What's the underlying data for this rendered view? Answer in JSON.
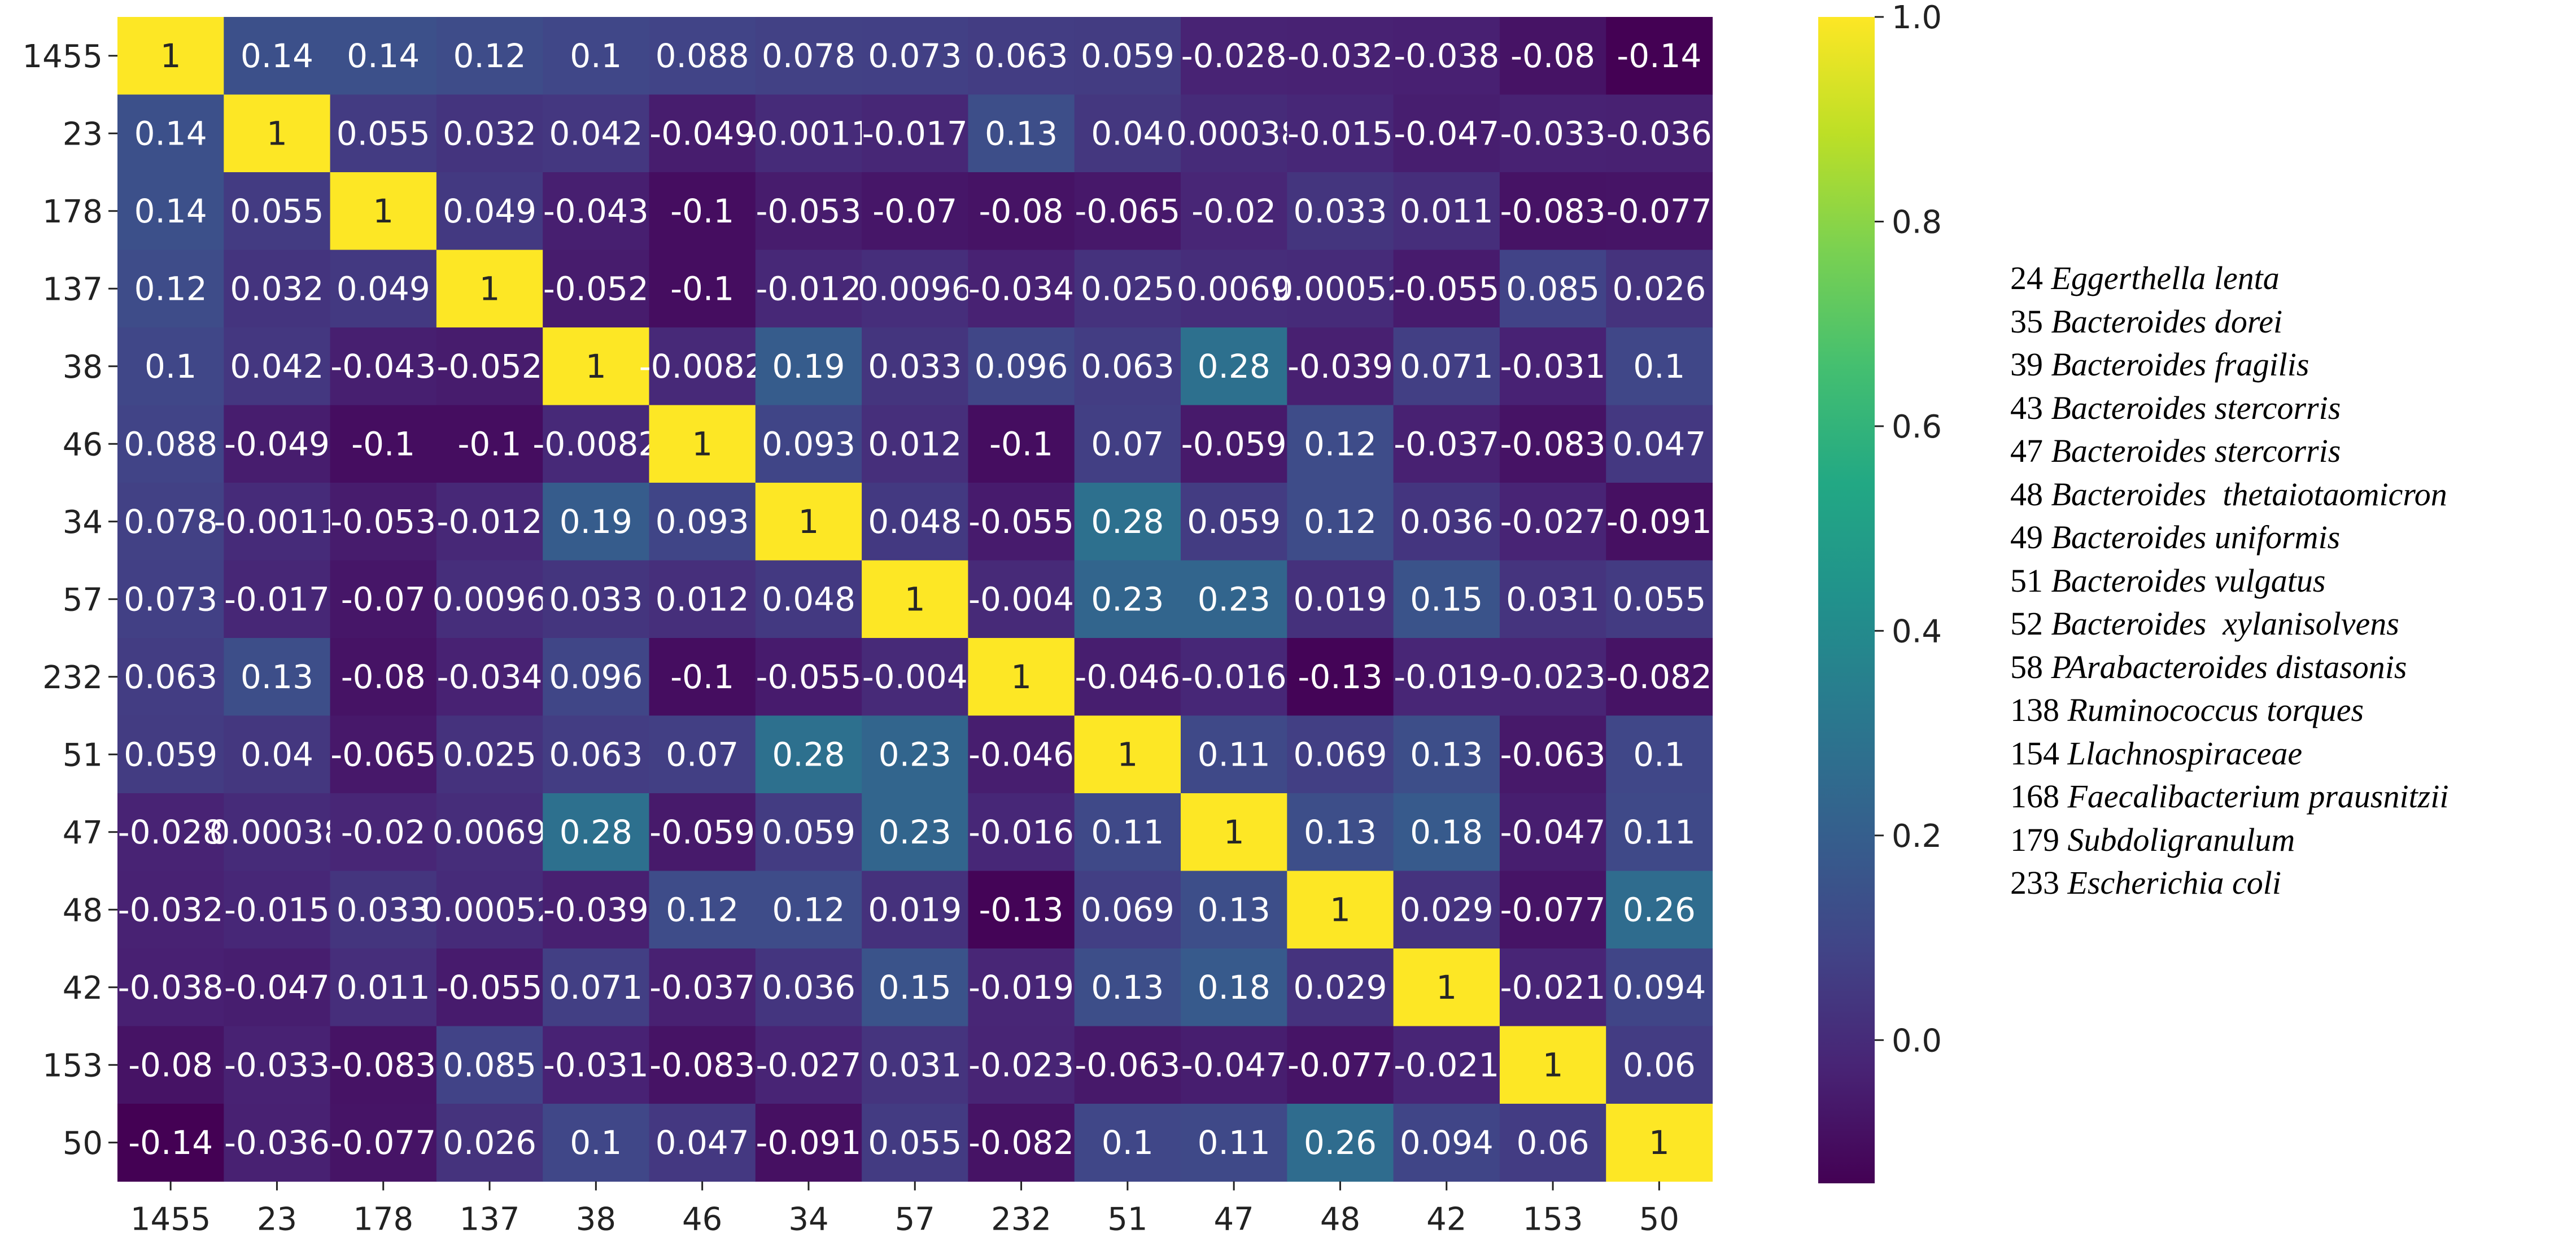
{
  "chart_data": {
    "type": "heatmap",
    "labels": [
      "1455",
      "23",
      "178",
      "137",
      "38",
      "46",
      "34",
      "57",
      "232",
      "51",
      "47",
      "48",
      "42",
      "153",
      "50"
    ],
    "cells": [
      [
        "1",
        "0.14",
        "0.14",
        "0.12",
        "0.1",
        "0.088",
        "0.078",
        "0.073",
        "0.063",
        "0.059",
        "-0.028",
        "-0.032",
        "-0.038",
        "-0.08",
        "-0.14"
      ],
      [
        "0.14",
        "1",
        "0.055",
        "0.032",
        "0.042",
        "-0.049",
        "-0.0011",
        "-0.017",
        "0.13",
        "0.04",
        "0.00038",
        "-0.015",
        "-0.047",
        "-0.033",
        "-0.036"
      ],
      [
        "0.14",
        "0.055",
        "1",
        "0.049",
        "-0.043",
        "-0.1",
        "-0.053",
        "-0.07",
        "-0.08",
        "-0.065",
        "-0.02",
        "0.033",
        "0.011",
        "-0.083",
        "-0.077"
      ],
      [
        "0.12",
        "0.032",
        "0.049",
        "1",
        "-0.052",
        "-0.1",
        "-0.012",
        "0.0096",
        "-0.034",
        "0.025",
        "0.0069",
        "0.00052",
        "-0.055",
        "0.085",
        "0.026"
      ],
      [
        "0.1",
        "0.042",
        "-0.043",
        "-0.052",
        "1",
        "-0.0082",
        "0.19",
        "0.033",
        "0.096",
        "0.063",
        "0.28",
        "-0.039",
        "0.071",
        "-0.031",
        "0.1"
      ],
      [
        "0.088",
        "-0.049",
        "-0.1",
        "-0.1",
        "-0.0082",
        "1",
        "0.093",
        "0.012",
        "-0.1",
        "0.07",
        "-0.059",
        "0.12",
        "-0.037",
        "-0.083",
        "0.047"
      ],
      [
        "0.078",
        "-0.0011",
        "-0.053",
        "-0.012",
        "0.19",
        "0.093",
        "1",
        "0.048",
        "-0.055",
        "0.28",
        "0.059",
        "0.12",
        "0.036",
        "-0.027",
        "-0.091"
      ],
      [
        "0.073",
        "-0.017",
        "-0.07",
        "0.0096",
        "0.033",
        "0.012",
        "0.048",
        "1",
        "-0.004",
        "0.23",
        "0.23",
        "0.019",
        "0.15",
        "0.031",
        "0.055"
      ],
      [
        "0.063",
        "0.13",
        "-0.08",
        "-0.034",
        "0.096",
        "-0.1",
        "-0.055",
        "-0.004",
        "1",
        "-0.046",
        "-0.016",
        "-0.13",
        "-0.019",
        "-0.023",
        "-0.082"
      ],
      [
        "0.059",
        "0.04",
        "-0.065",
        "0.025",
        "0.063",
        "0.07",
        "0.28",
        "0.23",
        "-0.046",
        "1",
        "0.11",
        "0.069",
        "0.13",
        "-0.063",
        "0.1"
      ],
      [
        "-0.028",
        "0.00038",
        "-0.02",
        "0.0069",
        "0.28",
        "-0.059",
        "0.059",
        "0.23",
        "-0.016",
        "0.11",
        "1",
        "0.13",
        "0.18",
        "-0.047",
        "0.11"
      ],
      [
        "-0.032",
        "-0.015",
        "0.033",
        "0.00052",
        "-0.039",
        "0.12",
        "0.12",
        "0.019",
        "-0.13",
        "0.069",
        "0.13",
        "1",
        "0.029",
        "-0.077",
        "0.26"
      ],
      [
        "-0.038",
        "-0.047",
        "0.011",
        "-0.055",
        "0.071",
        "-0.037",
        "0.036",
        "0.15",
        "-0.019",
        "0.13",
        "0.18",
        "0.029",
        "1",
        "-0.021",
        "0.094"
      ],
      [
        "-0.08",
        "-0.033",
        "-0.083",
        "0.085",
        "-0.031",
        "-0.083",
        "-0.027",
        "0.031",
        "-0.023",
        "-0.063",
        "-0.047",
        "-0.077",
        "-0.021",
        "1",
        "0.06"
      ],
      [
        "-0.14",
        "-0.036",
        "-0.077",
        "0.026",
        "0.1",
        "0.047",
        "-0.091",
        "0.055",
        "-0.082",
        "0.1",
        "0.11",
        "0.26",
        "0.094",
        "0.06",
        "1"
      ]
    ],
    "colormap": "viridis",
    "value_range": [
      -0.14,
      1.0
    ],
    "colorbar": {
      "ticks": [
        0.0,
        0.2,
        0.4,
        0.6,
        0.8,
        1.0
      ],
      "tick_labels": [
        "0.0",
        "0.2",
        "0.4",
        "0.6",
        "0.8",
        "1.0"
      ]
    },
    "grid": false
  },
  "legend": {
    "items": [
      {
        "id": "24",
        "name": "Eggerthella lenta"
      },
      {
        "id": "35",
        "name": "Bacteroides dorei"
      },
      {
        "id": "39",
        "name": "Bacteroides fragilis"
      },
      {
        "id": "43",
        "name": "Bacteroides stercorris"
      },
      {
        "id": "47",
        "name": "Bacteroides stercorris"
      },
      {
        "id": "48",
        "name": "Bacteroides  thetaiotaomicron"
      },
      {
        "id": "49",
        "name": "Bacteroides uniformis"
      },
      {
        "id": "51",
        "name": "Bacteroides vulgatus"
      },
      {
        "id": "52",
        "name": "Bacteroides  xylanisolvens"
      },
      {
        "id": "58",
        "name": "PArabacteroides distasonis"
      },
      {
        "id": "138",
        "name": "Ruminococcus torques"
      },
      {
        "id": "154",
        "name": "Llachnospiraceae"
      },
      {
        "id": "168",
        "name": "Faecalibacterium prausnitzii"
      },
      {
        "id": "179",
        "name": "Subdoligranulum"
      },
      {
        "id": "233",
        "name": "Escherichia coli"
      }
    ]
  }
}
